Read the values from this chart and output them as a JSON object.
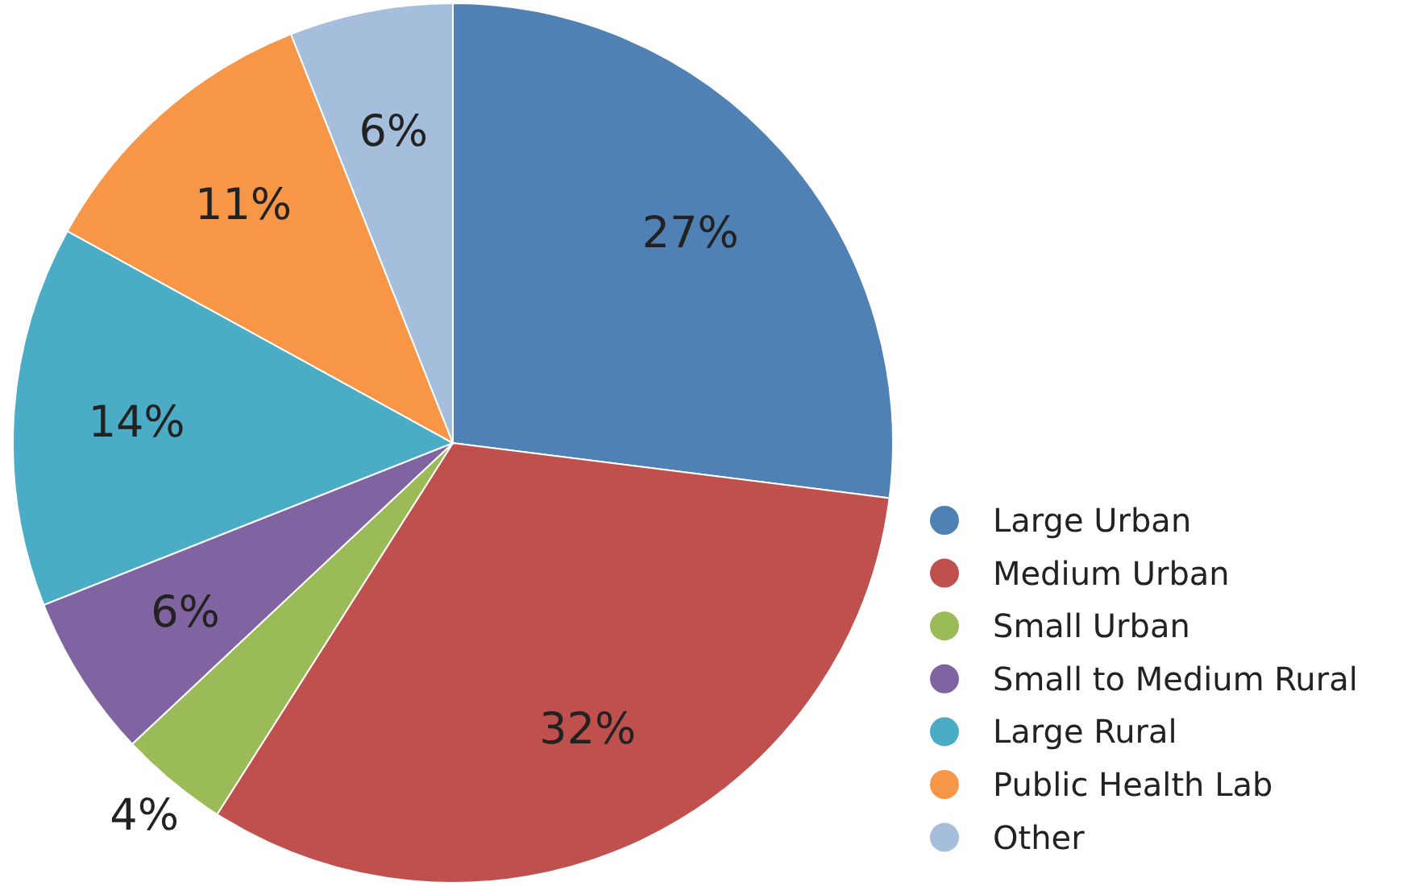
{
  "chart_data": {
    "type": "pie",
    "categories": [
      "Large Urban",
      "Medium Urban",
      "Small Urban",
      "Small to Medium Rural",
      "Large Rural",
      "Public Health Lab",
      "Other"
    ],
    "values": [
      27,
      32,
      4,
      6,
      14,
      11,
      6
    ],
    "colors": [
      "#4f81b4",
      "#c0504d",
      "#9bbb59",
      "#8064a2",
      "#4bacc6",
      "#f79646",
      "#a5bedb"
    ],
    "value_labels": [
      "27%",
      "32%",
      "4%",
      "6%",
      "14%",
      "11%",
      "6%"
    ],
    "legend": "right"
  }
}
